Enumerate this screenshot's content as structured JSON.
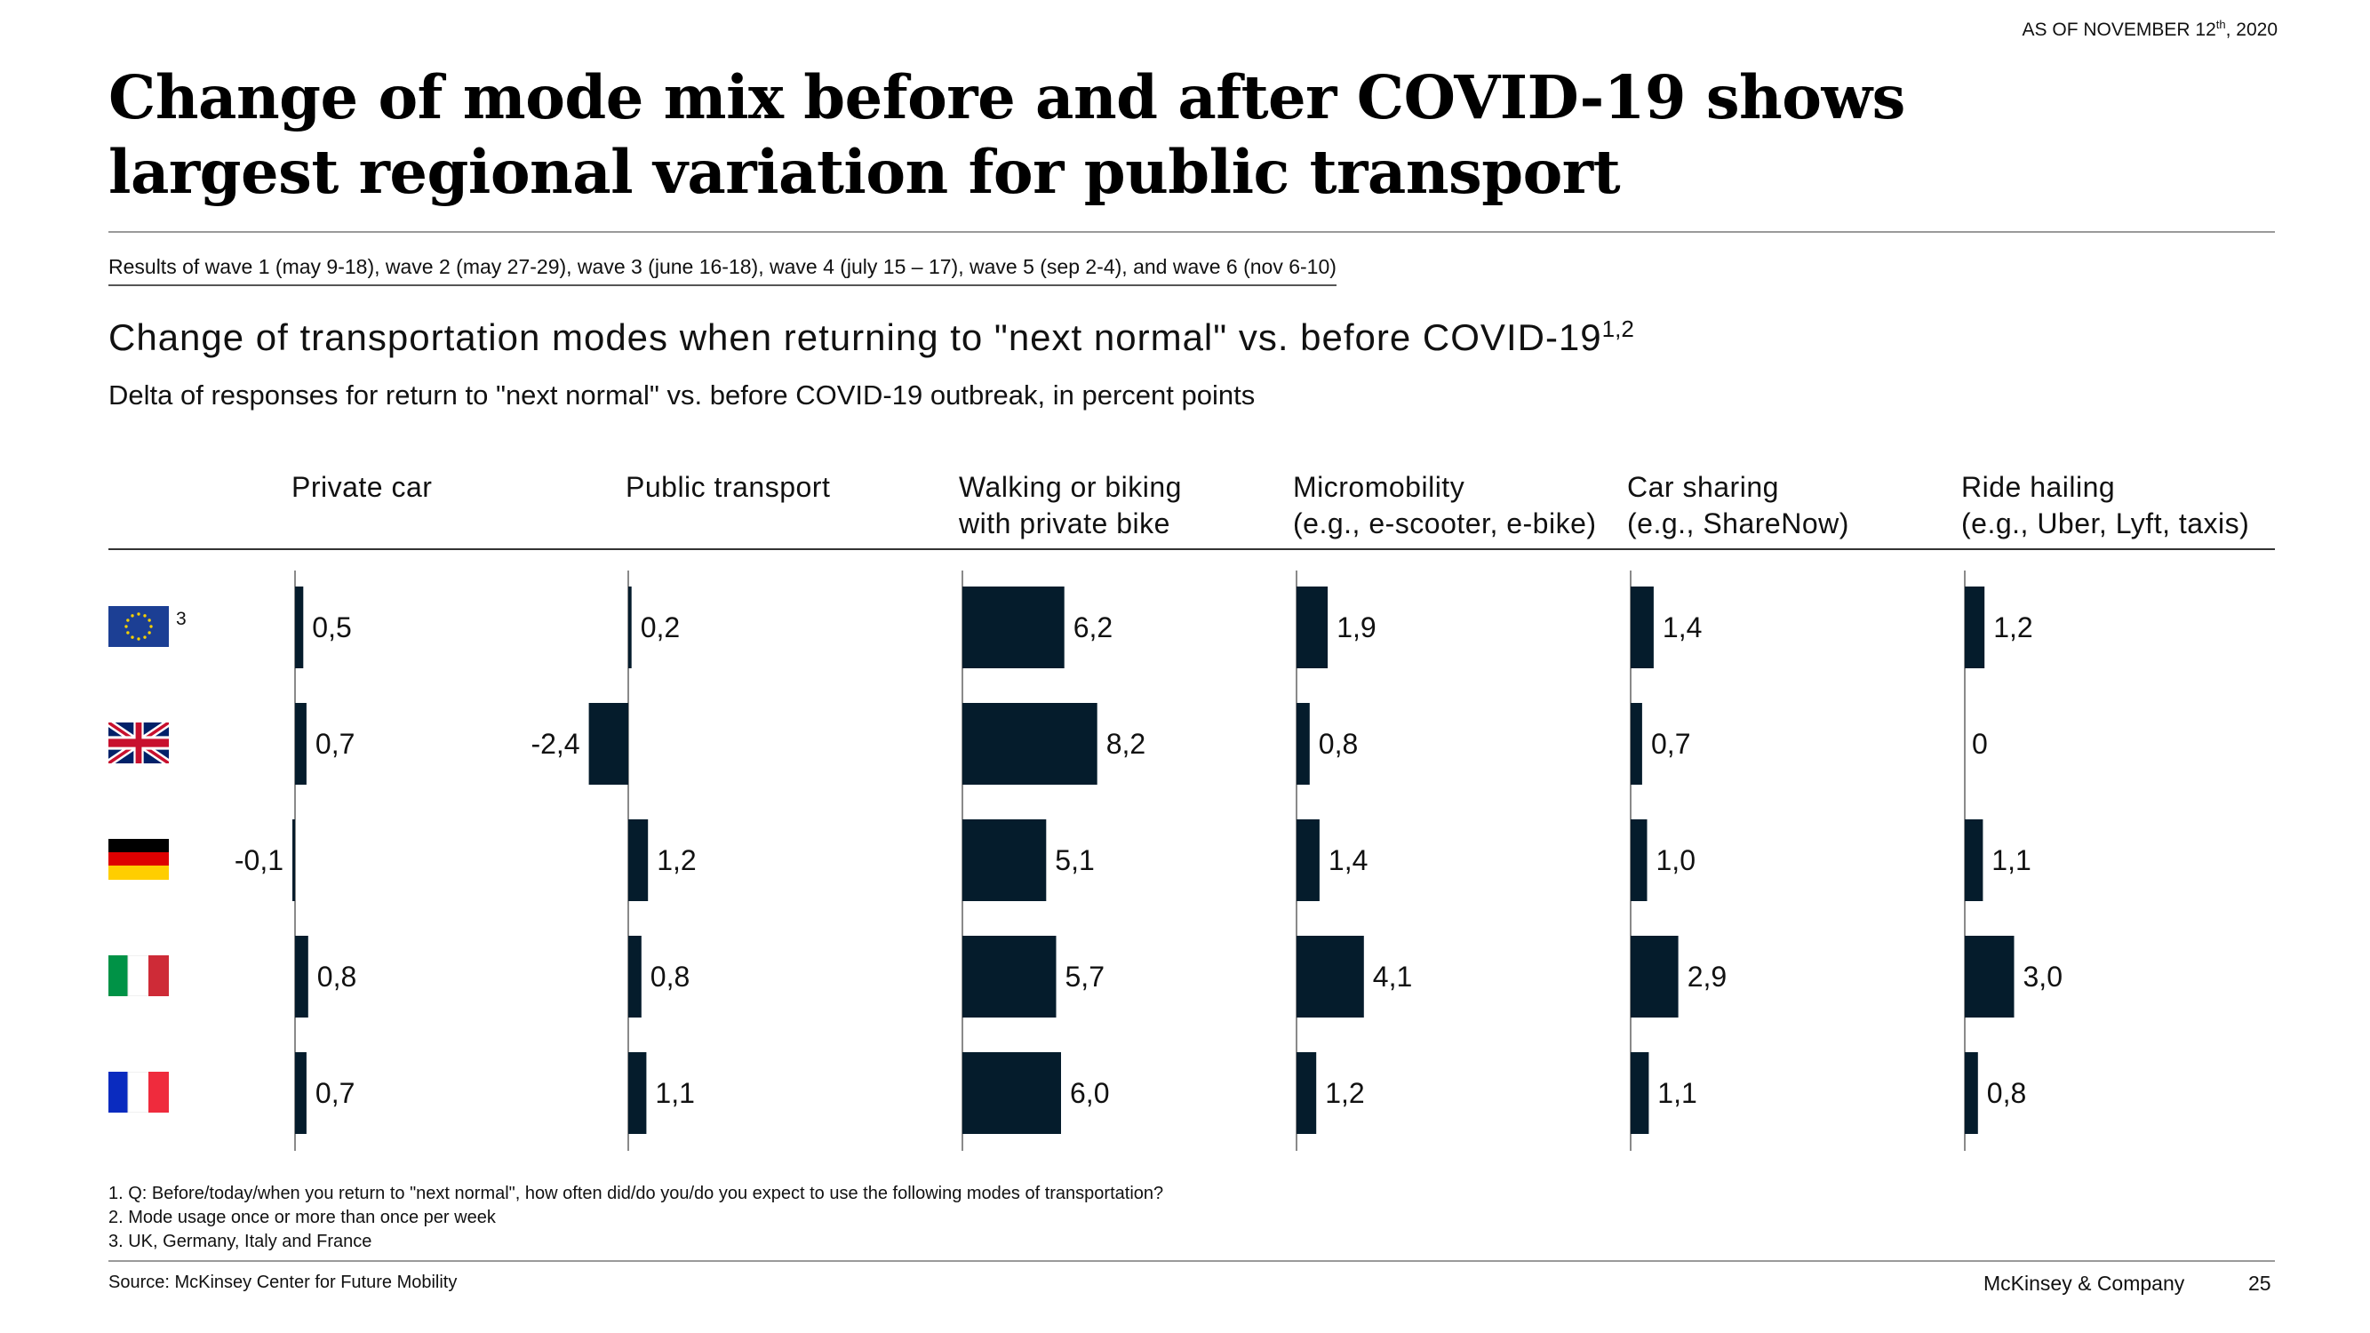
{
  "as_of": {
    "prefix": "AS OF NOVEMBER 12",
    "sup": "th",
    "suffix": ", 2020"
  },
  "title": "Change of mode mix before and after COVID-19 shows largest regional variation for public transport",
  "waves_note": "Results of wave 1 (may 9-18), wave 2 (may 27-29), wave 3 (june 16-18), wave 4 (july 15 – 17), wave 5 (sep 2-4), and wave 6 (nov 6-10)",
  "subtitle": "Change of transportation modes when returning to \"next normal\" vs. before COVID-19",
  "subtitle_sup": "1,2",
  "unit_line": "Delta of responses for return to \"next normal\" vs. before COVID-19 outbreak, in percent points",
  "columns": [
    {
      "line1": "",
      "line2": "Private car"
    },
    {
      "line1": "",
      "line2": "Public transport"
    },
    {
      "line1": "Walking or biking",
      "line2": "with private bike"
    },
    {
      "line1": "Micromobility",
      "line2": "(e.g., e-scooter, e-bike)"
    },
    {
      "line1": "Car sharing",
      "line2": "(e.g., ShareNow)"
    },
    {
      "line1": "Ride hailing",
      "line2": "(e.g., Uber, Lyft, taxis)"
    }
  ],
  "rows": [
    {
      "flag": "eu-flag-icon",
      "sup": "3"
    },
    {
      "flag": "uk-flag-icon",
      "sup": ""
    },
    {
      "flag": "germany-flag-icon",
      "sup": ""
    },
    {
      "flag": "italy-flag-icon",
      "sup": ""
    },
    {
      "flag": "france-flag-icon",
      "sup": ""
    }
  ],
  "chart_data": {
    "type": "bar",
    "orientation": "horizontal",
    "categories": [
      "Private car",
      "Public transport",
      "Walking or biking with private bike",
      "Micromobility (e.g., e-scooter, e-bike)",
      "Car sharing (e.g., ShareNow)",
      "Ride hailing (e.g., Uber, Lyft, taxis)"
    ],
    "row_icons": [
      "eu-flag-icon",
      "uk-flag-icon",
      "germany-flag-icon",
      "italy-flag-icon",
      "france-flag-icon"
    ],
    "values": [
      [
        0.5,
        0.2,
        6.2,
        1.9,
        1.4,
        1.2
      ],
      [
        0.7,
        -2.4,
        8.2,
        0.8,
        0.7,
        0.0
      ],
      [
        -0.1,
        1.2,
        5.1,
        1.4,
        1.0,
        1.1
      ],
      [
        0.8,
        0.8,
        5.7,
        4.1,
        2.9,
        3.0
      ],
      [
        0.7,
        1.1,
        6.0,
        1.2,
        1.1,
        0.8
      ]
    ],
    "labels": [
      [
        "0,5",
        "0,2",
        "6,2",
        "1,9",
        "1,4",
        "1,2"
      ],
      [
        "0,7",
        "-2,4",
        "8,2",
        "0,8",
        "0,7",
        "0"
      ],
      [
        "-0,1",
        "1,2",
        "5,1",
        "1,4",
        "1,0",
        "1,1"
      ],
      [
        "0,8",
        "0,8",
        "5,7",
        "4,1",
        "2,9",
        "3,0"
      ],
      [
        "0,7",
        "1,1",
        "6,0",
        "1,2",
        "1,1",
        "0,8"
      ]
    ],
    "bar_color": "#051c2c",
    "grid": false,
    "legend": "none"
  },
  "footnotes": [
    "1. Q: Before/today/when you return to \"next normal\", how often did/do you/do you expect to use the following modes of transportation?",
    "2. Mode usage once or more than once per week",
    "3. UK, Germany, Italy and France"
  ],
  "source": "Source: McKinsey Center for Future Mobility",
  "brand": "McKinsey & Company",
  "page_number": "25"
}
